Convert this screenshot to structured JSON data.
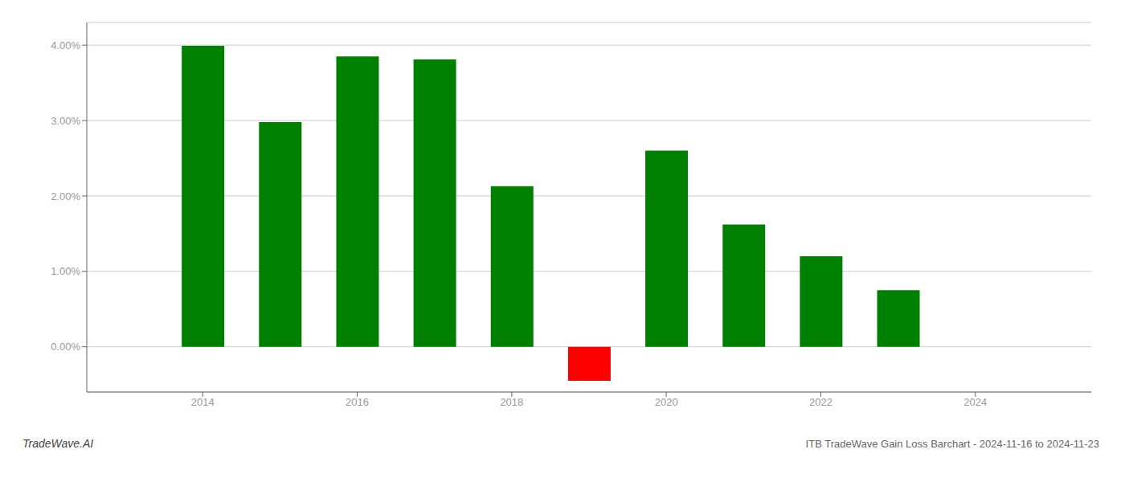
{
  "chart_data": {
    "type": "bar",
    "title": "ITB TradeWave Gain Loss Barchart - 2024-11-16 to 2024-11-23",
    "annotations": [
      "TradeWave.AI"
    ],
    "x": [
      2014,
      2015,
      2016,
      2017,
      2018,
      2019,
      2020,
      2021,
      2022,
      2023
    ],
    "values": [
      0.0399,
      0.0298,
      0.0385,
      0.0381,
      0.0213,
      -0.0045,
      0.026,
      0.0162,
      0.012,
      0.0075
    ],
    "colors": [
      "#008000",
      "#008000",
      "#008000",
      "#008000",
      "#008000",
      "#ff0000",
      "#008000",
      "#008000",
      "#008000",
      "#008000"
    ],
    "xlim": [
      2012.5,
      2025.5
    ],
    "xticks": [
      2014,
      2016,
      2018,
      2020,
      2022,
      2024
    ],
    "ylim": [
      -0.006,
      0.043
    ],
    "yticks": [
      {
        "value": 0.0,
        "label": "0.00%"
      },
      {
        "value": 0.01,
        "label": "1.00%"
      },
      {
        "value": 0.02,
        "label": "2.00%"
      },
      {
        "value": 0.03,
        "label": "3.00%"
      },
      {
        "value": 0.04,
        "label": "4.00%"
      }
    ],
    "grid": true
  }
}
